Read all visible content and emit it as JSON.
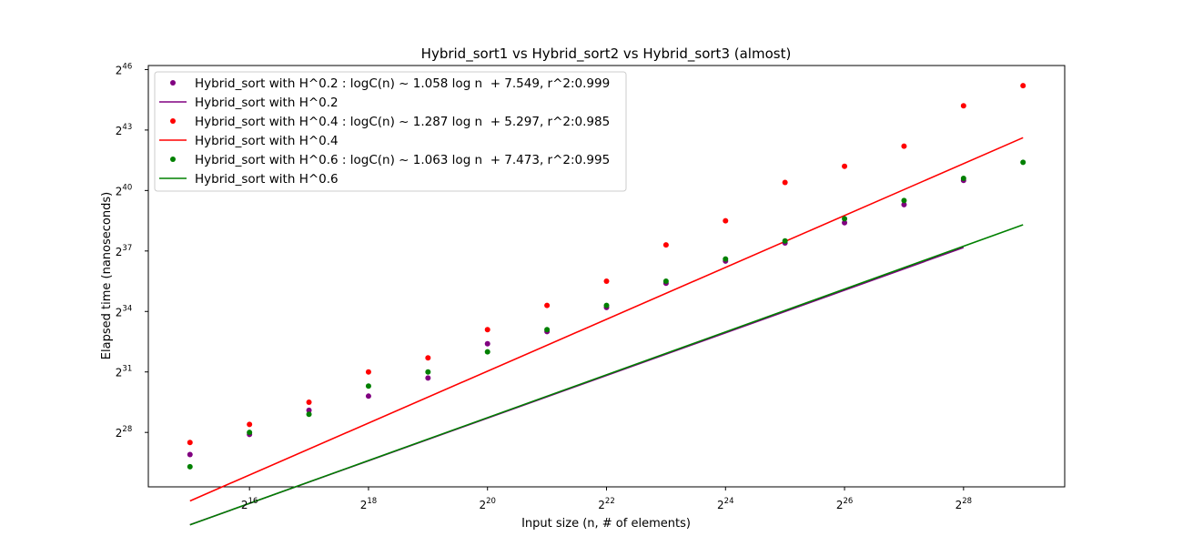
{
  "chart_data": {
    "type": "scatter",
    "title": "Hybrid_sort1 vs Hybrid_sort2 vs Hybrid_sort3 (almost)",
    "xlabel": "Input size (n, # of elements)",
    "ylabel": "Elapsed time (nanoseconds)",
    "xscale": "log2",
    "yscale": "log2",
    "xlim_exponent": [
      14.3,
      29.7
    ],
    "ylim_exponent": [
      25.3,
      46.2
    ],
    "x_ticks": [
      {
        "base": "2",
        "exp": "16",
        "value": 16
      },
      {
        "base": "2",
        "exp": "18",
        "value": 18
      },
      {
        "base": "2",
        "exp": "20",
        "value": 20
      },
      {
        "base": "2",
        "exp": "22",
        "value": 22
      },
      {
        "base": "2",
        "exp": "24",
        "value": 24
      },
      {
        "base": "2",
        "exp": "26",
        "value": 26
      },
      {
        "base": "2",
        "exp": "28",
        "value": 28
      }
    ],
    "y_ticks": [
      {
        "base": "2",
        "exp": "28",
        "value": 28
      },
      {
        "base": "2",
        "exp": "31",
        "value": 31
      },
      {
        "base": "2",
        "exp": "34",
        "value": 34
      },
      {
        "base": "2",
        "exp": "37",
        "value": 37
      },
      {
        "base": "2",
        "exp": "40",
        "value": 40
      },
      {
        "base": "2",
        "exp": "43",
        "value": 43
      },
      {
        "base": "2",
        "exp": "46",
        "value": 46
      }
    ],
    "legend": {
      "placement": "upper-left",
      "entries": [
        {
          "label": "Hybrid_sort with H^0.2 : logC(n) ~ 1.058 log n  + 7.549, r^2:0.999",
          "kind": "marker",
          "color": "#800080"
        },
        {
          "label": "Hybrid_sort with H^0.2",
          "kind": "line",
          "color": "#800080"
        },
        {
          "label": "Hybrid_sort with H^0.4 : logC(n) ~ 1.287 log n  + 5.297, r^2:0.985",
          "kind": "marker",
          "color": "#ff0000"
        },
        {
          "label": "Hybrid_sort with H^0.4",
          "kind": "line",
          "color": "#ff0000"
        },
        {
          "label": "Hybrid_sort with H^0.6 : logC(n) ~ 1.063 log n  + 7.473, r^2:0.995",
          "kind": "marker",
          "color": "#008000"
        },
        {
          "label": "Hybrid_sort with H^0.6",
          "kind": "line",
          "color": "#008000"
        }
      ]
    },
    "series": [
      {
        "color": "#800080",
        "fit": {
          "slope": 1.058,
          "intercept": 7.549
        },
        "x_exp": [
          15,
          16,
          17,
          18,
          19,
          20,
          21,
          22,
          23,
          24,
          25,
          26,
          27,
          28
        ],
        "y_exp": [
          26.9,
          27.9,
          29.1,
          29.8,
          30.7,
          32.4,
          33.0,
          34.2,
          35.4,
          36.5,
          37.4,
          38.4,
          39.3,
          40.5
        ]
      },
      {
        "color": "#ff0000",
        "fit": {
          "slope": 1.287,
          "intercept": 5.297
        },
        "x_exp": [
          15,
          16,
          17,
          18,
          19,
          20,
          21,
          22,
          23,
          24,
          25,
          26,
          27,
          28,
          29
        ],
        "y_exp": [
          27.5,
          28.4,
          29.5,
          31.0,
          31.7,
          33.1,
          34.3,
          35.5,
          37.3,
          38.5,
          40.4,
          41.2,
          42.2,
          44.2,
          45.2
        ]
      },
      {
        "color": "#008000",
        "fit": {
          "slope": 1.063,
          "intercept": 7.473
        },
        "x_exp": [
          15,
          16,
          17,
          18,
          19,
          20,
          21,
          22,
          23,
          24,
          25,
          26,
          27,
          28,
          29
        ],
        "y_exp": [
          26.3,
          28.0,
          28.9,
          30.3,
          31.0,
          32.0,
          33.1,
          34.3,
          35.5,
          36.6,
          37.5,
          38.6,
          39.5,
          40.6,
          41.4
        ]
      }
    ]
  }
}
